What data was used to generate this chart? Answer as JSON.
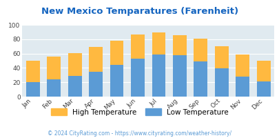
{
  "title": "New Mexico Temparatures (Farenheit)",
  "months": [
    "Jan",
    "Feb",
    "Mar",
    "Apr",
    "May",
    "Jun",
    "Jul",
    "Aug",
    "Sep",
    "Oct",
    "Nov",
    "Dec"
  ],
  "high_temps": [
    50,
    56,
    61,
    69,
    78,
    87,
    89,
    86,
    81,
    70,
    59,
    50
  ],
  "low_temps": [
    20,
    24,
    29,
    35,
    44,
    53,
    59,
    58,
    49,
    39,
    28,
    21
  ],
  "color_high": "#FFB940",
  "color_low": "#5B9BD5",
  "title_color": "#1565C0",
  "bg_color": "#E0EAF0",
  "ylim": [
    0,
    100
  ],
  "yticks": [
    0,
    20,
    40,
    60,
    80,
    100
  ],
  "footer": "© 2024 CityRating.com - https://www.cityrating.com/weather-history/",
  "footer_color": "#5B9BD5",
  "legend_high": "High Temperature",
  "legend_low": "Low Temperature"
}
